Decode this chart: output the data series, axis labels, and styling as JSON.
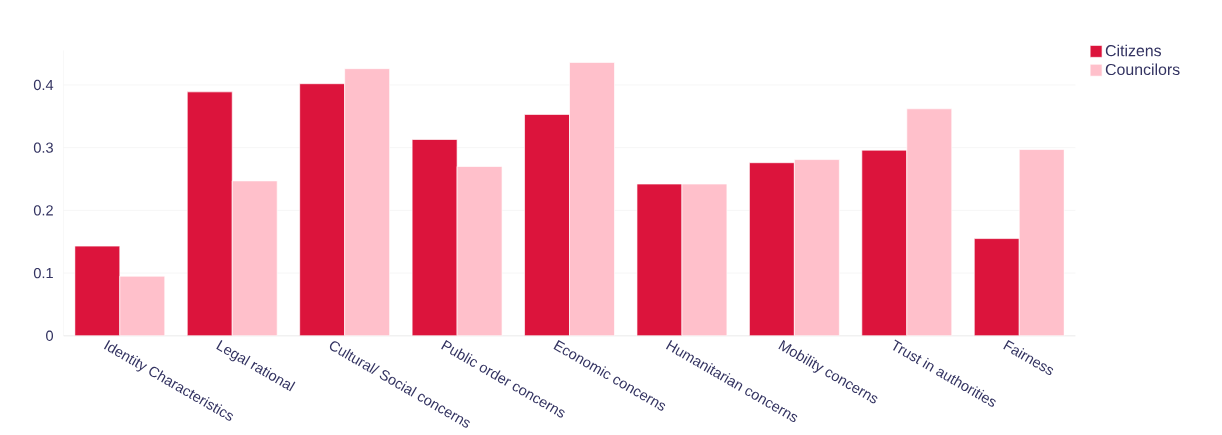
{
  "chart_data": {
    "type": "bar",
    "categories": [
      "Identity Characteristics",
      "Legal rational",
      "Cultural/ Social  concerns",
      "Public order concerns",
      "Economic concerns",
      "Humanitarian concerns",
      "Mobility concerns",
      "Trust in authorities",
      "Fairness"
    ],
    "series": [
      {
        "name": "Citizens",
        "color": "#dc143c",
        "values": [
          0.143,
          0.389,
          0.402,
          0.313,
          0.353,
          0.242,
          0.276,
          0.296,
          0.155
        ]
      },
      {
        "name": "Councilors",
        "color": "#ffc0cb",
        "values": [
          0.095,
          0.247,
          0.426,
          0.27,
          0.436,
          0.242,
          0.281,
          0.362,
          0.297
        ]
      }
    ],
    "ylim": [
      0,
      0.455
    ],
    "yticks": [
      0,
      0.1,
      0.2,
      0.3,
      0.4
    ],
    "grid": "y",
    "legend": "top right"
  }
}
